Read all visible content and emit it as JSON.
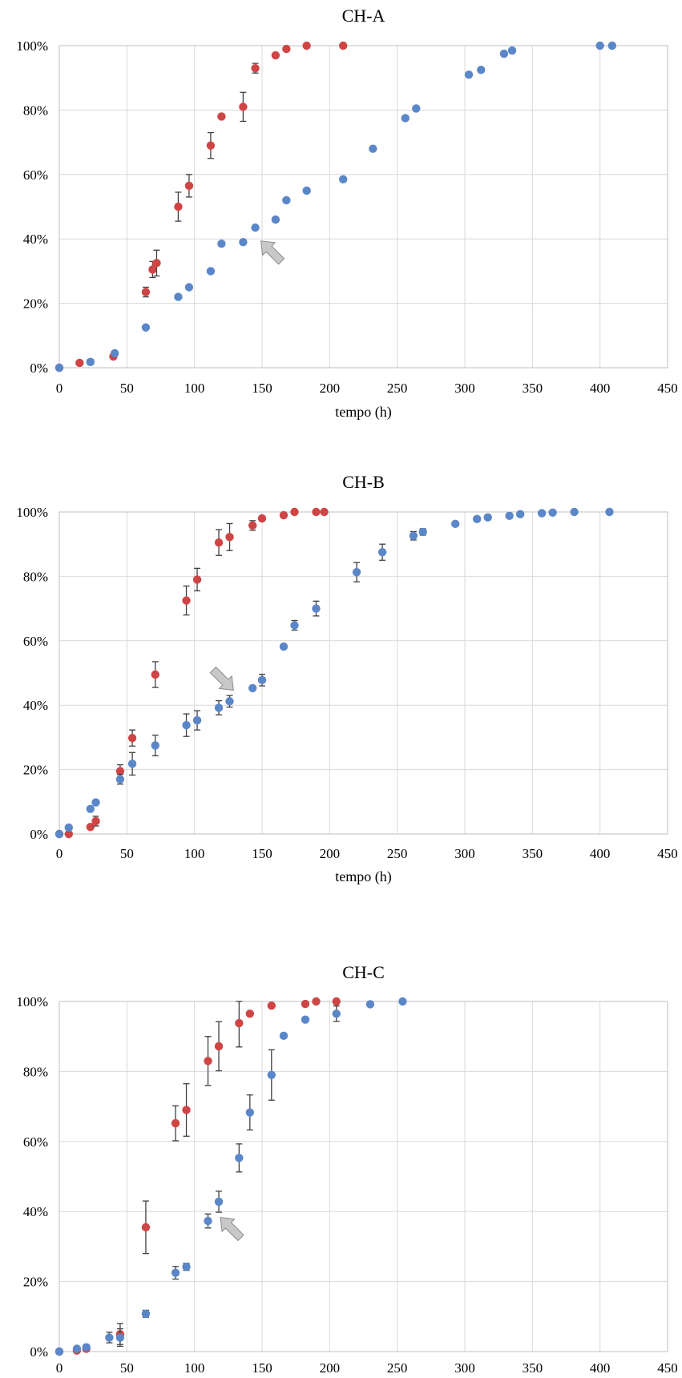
{
  "colors": {
    "series_a": "#cf4545",
    "series_b": "#5b87c9",
    "errorbar": "#404040",
    "arrow": "#c8c8c8",
    "grid": "#d9d9d9"
  },
  "chart_data": [
    {
      "type": "scatter",
      "title": "CH-A",
      "xlabel": "tempo (h)",
      "ylabel": "",
      "xlim": [
        0,
        450
      ],
      "ylim": [
        0,
        100
      ],
      "x_ticks": [
        "0",
        "50",
        "100",
        "150",
        "200",
        "250",
        "300",
        "350",
        "400",
        "450"
      ],
      "y_ticks": [
        "0%",
        "20%",
        "40%",
        "60%",
        "80%",
        "100%"
      ],
      "grid": "vertical and horizontal",
      "arrow": {
        "x": 150,
        "y": 39,
        "direction": "up-left"
      },
      "series": [
        {
          "color": "red",
          "points": [
            {
              "x": 0,
              "y": 0
            },
            {
              "x": 15,
              "y": 1.5
            },
            {
              "x": 40,
              "y": 3.5,
              "err": 0.5
            },
            {
              "x": 64,
              "y": 23.5,
              "err": 1.5
            },
            {
              "x": 69,
              "y": 30.5,
              "err": 2.5
            },
            {
              "x": 72,
              "y": 32.5,
              "err": 4
            },
            {
              "x": 88,
              "y": 50,
              "err": 4.5
            },
            {
              "x": 96,
              "y": 56.5,
              "err": 3.5
            },
            {
              "x": 112,
              "y": 69,
              "err": 4
            },
            {
              "x": 120,
              "y": 78
            },
            {
              "x": 136,
              "y": 81,
              "err": 4.5
            },
            {
              "x": 145,
              "y": 93,
              "err": 1.5
            },
            {
              "x": 160,
              "y": 97
            },
            {
              "x": 168,
              "y": 99
            },
            {
              "x": 183,
              "y": 100
            },
            {
              "x": 210,
              "y": 100
            }
          ]
        },
        {
          "color": "blue",
          "points": [
            {
              "x": 0,
              "y": 0
            },
            {
              "x": 23,
              "y": 1.8,
              "err": 0.8
            },
            {
              "x": 41,
              "y": 4.5,
              "err": 0.5
            },
            {
              "x": 64,
              "y": 12.5
            },
            {
              "x": 88,
              "y": 22
            },
            {
              "x": 96,
              "y": 25
            },
            {
              "x": 112,
              "y": 30
            },
            {
              "x": 120,
              "y": 38.5
            },
            {
              "x": 136,
              "y": 39
            },
            {
              "x": 145,
              "y": 43.5
            },
            {
              "x": 160,
              "y": 46
            },
            {
              "x": 168,
              "y": 52
            },
            {
              "x": 183,
              "y": 55
            },
            {
              "x": 210,
              "y": 58.5
            },
            {
              "x": 232,
              "y": 68
            },
            {
              "x": 256,
              "y": 77.5
            },
            {
              "x": 264,
              "y": 80.5
            },
            {
              "x": 303,
              "y": 91
            },
            {
              "x": 312,
              "y": 92.5
            },
            {
              "x": 329,
              "y": 97.5
            },
            {
              "x": 335,
              "y": 98.5
            },
            {
              "x": 400,
              "y": 100
            },
            {
              "x": 409,
              "y": 100
            }
          ]
        }
      ]
    },
    {
      "type": "scatter",
      "title": "CH-B",
      "xlabel": "tempo (h)",
      "ylabel": "",
      "xlim": [
        0,
        450
      ],
      "ylim": [
        0,
        100
      ],
      "x_ticks": [
        "0",
        "50",
        "100",
        "150",
        "200",
        "250",
        "300",
        "350",
        "400",
        "450"
      ],
      "y_ticks": [
        "0%",
        "20%",
        "40%",
        "60%",
        "80%",
        "100%"
      ],
      "grid": "vertical and horizontal",
      "arrow": {
        "x": 128,
        "y": 45,
        "direction": "down-right"
      },
      "series": [
        {
          "color": "red",
          "points": [
            {
              "x": 0,
              "y": 0
            },
            {
              "x": 7,
              "y": 0
            },
            {
              "x": 23,
              "y": 2.2
            },
            {
              "x": 27,
              "y": 4,
              "err": 1.5
            },
            {
              "x": 45,
              "y": 19.5,
              "err": 2
            },
            {
              "x": 54,
              "y": 29.8,
              "err": 2.5
            },
            {
              "x": 71,
              "y": 49.5,
              "err": 4
            },
            {
              "x": 94,
              "y": 72.5,
              "err": 4.5
            },
            {
              "x": 102,
              "y": 79,
              "err": 3.5
            },
            {
              "x": 118,
              "y": 90.5,
              "err": 4
            },
            {
              "x": 126,
              "y": 92.2,
              "err": 4.2
            },
            {
              "x": 143,
              "y": 95.8,
              "err": 1.5
            },
            {
              "x": 150,
              "y": 98
            },
            {
              "x": 166,
              "y": 99
            },
            {
              "x": 174,
              "y": 100
            },
            {
              "x": 190,
              "y": 100
            },
            {
              "x": 196,
              "y": 100
            }
          ]
        },
        {
          "color": "blue",
          "points": [
            {
              "x": 0,
              "y": 0
            },
            {
              "x": 7,
              "y": 2
            },
            {
              "x": 23,
              "y": 7.8
            },
            {
              "x": 27,
              "y": 9.8
            },
            {
              "x": 45,
              "y": 17,
              "err": 1.5
            },
            {
              "x": 54,
              "y": 21.8,
              "err": 3.5
            },
            {
              "x": 71,
              "y": 27.5,
              "err": 3.2
            },
            {
              "x": 94,
              "y": 33.8,
              "err": 3.5
            },
            {
              "x": 102,
              "y": 35.3,
              "err": 3
            },
            {
              "x": 118,
              "y": 39.2,
              "err": 2.2
            },
            {
              "x": 126,
              "y": 41.2,
              "err": 1.8
            },
            {
              "x": 143,
              "y": 45.3
            },
            {
              "x": 150,
              "y": 47.8,
              "err": 1.8
            },
            {
              "x": 166,
              "y": 58.2
            },
            {
              "x": 174,
              "y": 64.8,
              "err": 1.5
            },
            {
              "x": 190,
              "y": 70,
              "err": 2.3
            },
            {
              "x": 220,
              "y": 81.3,
              "err": 3
            },
            {
              "x": 239,
              "y": 87.5,
              "err": 2.5
            },
            {
              "x": 262,
              "y": 92.6,
              "err": 1.3
            },
            {
              "x": 269,
              "y": 93.8,
              "err": 1
            },
            {
              "x": 293,
              "y": 96.3
            },
            {
              "x": 309,
              "y": 97.8
            },
            {
              "x": 317,
              "y": 98.3
            },
            {
              "x": 333,
              "y": 98.8
            },
            {
              "x": 341,
              "y": 99.3
            },
            {
              "x": 357,
              "y": 99.6
            },
            {
              "x": 365,
              "y": 99.8
            },
            {
              "x": 381,
              "y": 100
            },
            {
              "x": 407,
              "y": 100
            }
          ]
        }
      ]
    },
    {
      "type": "scatter",
      "title": "CH-C",
      "xlabel": "",
      "ylabel": "",
      "xlim": [
        0,
        450
      ],
      "ylim": [
        0,
        100
      ],
      "x_ticks": [
        "0",
        "50",
        "100",
        "150",
        "200",
        "250",
        "300",
        "350",
        "400",
        "450"
      ],
      "y_ticks": [
        "0%",
        "20%",
        "40%",
        "60%",
        "80%",
        "100%"
      ],
      "grid": "vertical and horizontal",
      "arrow": {
        "x": 120,
        "y": 38,
        "direction": "up-left"
      },
      "series": [
        {
          "color": "red",
          "points": [
            {
              "x": 0,
              "y": 0
            },
            {
              "x": 13,
              "y": 0.3
            },
            {
              "x": 20,
              "y": 0.8
            },
            {
              "x": 45,
              "y": 5,
              "err": 3
            },
            {
              "x": 64,
              "y": 35.5,
              "err": 7.5
            },
            {
              "x": 86,
              "y": 65.2,
              "err": 5
            },
            {
              "x": 94,
              "y": 69,
              "err": 7.5
            },
            {
              "x": 110,
              "y": 83,
              "err": 7
            },
            {
              "x": 118,
              "y": 87.2,
              "err": 7
            },
            {
              "x": 133,
              "y": 93.8,
              "err": 6.8
            },
            {
              "x": 141,
              "y": 96.5
            },
            {
              "x": 157,
              "y": 98.8
            },
            {
              "x": 182,
              "y": 99.3
            },
            {
              "x": 190,
              "y": 100
            },
            {
              "x": 205,
              "y": 100
            }
          ]
        },
        {
          "color": "blue",
          "points": [
            {
              "x": 0,
              "y": 0
            },
            {
              "x": 13,
              "y": 0.8
            },
            {
              "x": 20,
              "y": 1.2,
              "err": 0.8
            },
            {
              "x": 37,
              "y": 4,
              "err": 1.5
            },
            {
              "x": 45,
              "y": 4,
              "err": 2.5
            },
            {
              "x": 64,
              "y": 10.8,
              "err": 1
            },
            {
              "x": 86,
              "y": 22.5,
              "err": 1.8
            },
            {
              "x": 94,
              "y": 24.2,
              "err": 1
            },
            {
              "x": 110,
              "y": 37.3,
              "err": 2
            },
            {
              "x": 118,
              "y": 42.8,
              "err": 3
            },
            {
              "x": 133,
              "y": 55.3,
              "err": 4
            },
            {
              "x": 141,
              "y": 68.3,
              "err": 5
            },
            {
              "x": 157,
              "y": 79,
              "err": 7.2
            },
            {
              "x": 166,
              "y": 90.2
            },
            {
              "x": 182,
              "y": 94.8
            },
            {
              "x": 205,
              "y": 96.5,
              "err": 2.2
            },
            {
              "x": 230,
              "y": 99.2
            },
            {
              "x": 254,
              "y": 100
            }
          ]
        }
      ]
    }
  ]
}
